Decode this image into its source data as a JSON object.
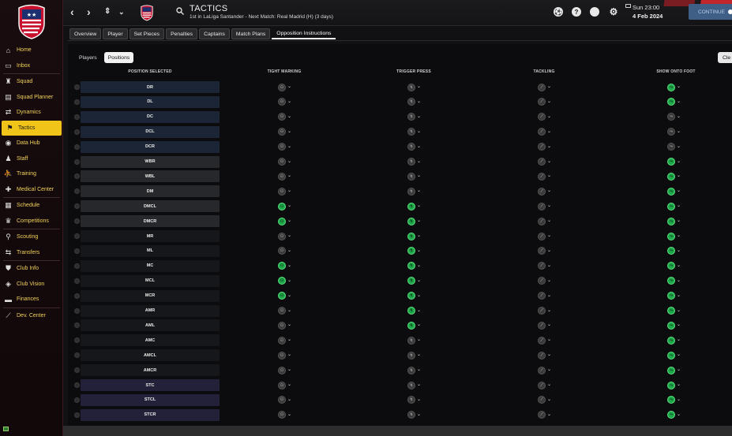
{
  "sidebar": {
    "items": [
      {
        "label": "Home",
        "icon": "home-icon",
        "glyph": "⌂"
      },
      {
        "label": "Inbox",
        "icon": "inbox-icon",
        "glyph": "▭"
      },
      {
        "sep": true
      },
      {
        "label": "Squad",
        "icon": "shirt-icon",
        "glyph": "♜"
      },
      {
        "label": "Squad Planner",
        "icon": "planner-icon",
        "glyph": "▤"
      },
      {
        "label": "Dynamics",
        "icon": "dynamics-icon",
        "glyph": "⇄"
      },
      {
        "label": "Tactics",
        "icon": "tactics-icon",
        "glyph": "⚑",
        "active": true
      },
      {
        "label": "Data Hub",
        "icon": "data-hub-icon",
        "glyph": "◉"
      },
      {
        "label": "Staff",
        "icon": "staff-icon",
        "glyph": "♟"
      },
      {
        "label": "Training",
        "icon": "training-icon",
        "glyph": "⛹"
      },
      {
        "label": "Medical Center",
        "icon": "medical-icon",
        "glyph": "✚"
      },
      {
        "sep": true
      },
      {
        "label": "Schedule",
        "icon": "schedule-icon",
        "glyph": "▦"
      },
      {
        "label": "Competitions",
        "icon": "trophy-icon",
        "glyph": "♛"
      },
      {
        "sep": true
      },
      {
        "label": "Scouting",
        "icon": "scouting-icon",
        "glyph": "⚲"
      },
      {
        "label": "Transfers",
        "icon": "transfers-icon",
        "glyph": "⇆"
      },
      {
        "sep": true
      },
      {
        "label": "Club Info",
        "icon": "shield-icon",
        "glyph": "⛊"
      },
      {
        "label": "Club Vision",
        "icon": "vision-icon",
        "glyph": "◈"
      },
      {
        "label": "Finances",
        "icon": "finances-icon",
        "glyph": "▬"
      },
      {
        "sep": true
      },
      {
        "label": "Dev. Center",
        "icon": "dev-center-icon",
        "glyph": "⟋"
      }
    ]
  },
  "header": {
    "title": "TACTICS",
    "subtitle": "1st in LaLiga Santander - Next Match: Real Madrid (H) (3 days)",
    "time": "Sun 23:00",
    "date": "4 Feb 2024",
    "continue_label": "CONTINUE"
  },
  "tabs": [
    "Overview",
    "Player",
    "Set Pieces",
    "Penalties",
    "Captains",
    "Match Plans",
    "Opposition Instructions"
  ],
  "active_tab": "Opposition Instructions",
  "sub_tabs": [
    "Players",
    "Positions"
  ],
  "active_sub_tab": "Positions",
  "clear_label": "Cle",
  "columns": {
    "position": "POSITION SELECTED",
    "tight_marking": "TIGHT MARKING",
    "trigger_press": "TRIGGER PRESS",
    "tackling": "TACKLING",
    "show_onto_foot": "SHOW ONTO FOOT"
  },
  "colors": {
    "accent_yellow": "#f0c419",
    "active_green": "#1fa84a",
    "row_blue": "#1a2433",
    "row_grey": "#26272a",
    "row_purple": "#22213a",
    "continue_blue": "#3f5f86"
  },
  "rows": [
    {
      "pos": "DR",
      "tone": "blue",
      "tm": false,
      "tp": false,
      "tk": false,
      "sf": true
    },
    {
      "pos": "DL",
      "tone": "blue",
      "tm": false,
      "tp": false,
      "tk": false,
      "sf": true
    },
    {
      "pos": "DC",
      "tone": "blue",
      "tm": false,
      "tp": false,
      "tk": false,
      "sf": false
    },
    {
      "pos": "DCL",
      "tone": "blue",
      "tm": false,
      "tp": false,
      "tk": false,
      "sf": false
    },
    {
      "pos": "DCR",
      "tone": "blue",
      "tm": false,
      "tp": false,
      "tk": false,
      "sf": false
    },
    {
      "pos": "WBR",
      "tone": "grey",
      "tm": false,
      "tp": false,
      "tk": false,
      "sf": true
    },
    {
      "pos": "WBL",
      "tone": "grey",
      "tm": false,
      "tp": false,
      "tk": false,
      "sf": true
    },
    {
      "pos": "DM",
      "tone": "grey",
      "tm": false,
      "tp": false,
      "tk": false,
      "sf": true
    },
    {
      "pos": "DMCL",
      "tone": "grey",
      "tm": true,
      "tp": true,
      "tk": false,
      "sf": true
    },
    {
      "pos": "DMCR",
      "tone": "grey",
      "tm": true,
      "tp": true,
      "tk": false,
      "sf": true
    },
    {
      "pos": "MR",
      "tone": "dark",
      "tm": false,
      "tp": true,
      "tk": false,
      "sf": true
    },
    {
      "pos": "ML",
      "tone": "dark",
      "tm": false,
      "tp": true,
      "tk": false,
      "sf": true
    },
    {
      "pos": "MC",
      "tone": "dark",
      "tm": true,
      "tp": true,
      "tk": false,
      "sf": true
    },
    {
      "pos": "MCL",
      "tone": "dark",
      "tm": true,
      "tp": true,
      "tk": false,
      "sf": true
    },
    {
      "pos": "MCR",
      "tone": "dark",
      "tm": true,
      "tp": true,
      "tk": false,
      "sf": true
    },
    {
      "pos": "AMR",
      "tone": "dark",
      "tm": false,
      "tp": true,
      "tk": false,
      "sf": true
    },
    {
      "pos": "AML",
      "tone": "dark",
      "tm": false,
      "tp": true,
      "tk": false,
      "sf": true
    },
    {
      "pos": "AMC",
      "tone": "dark",
      "tm": false,
      "tp": false,
      "tk": false,
      "sf": true
    },
    {
      "pos": "AMCL",
      "tone": "dark",
      "tm": false,
      "tp": false,
      "tk": false,
      "sf": true
    },
    {
      "pos": "AMCR",
      "tone": "dark",
      "tm": false,
      "tp": false,
      "tk": false,
      "sf": true
    },
    {
      "pos": "STC",
      "tone": "purple",
      "tm": false,
      "tp": false,
      "tk": false,
      "sf": true
    },
    {
      "pos": "STCL",
      "tone": "purple",
      "tm": false,
      "tp": false,
      "tk": false,
      "sf": true
    },
    {
      "pos": "STCR",
      "tone": "purple",
      "tm": false,
      "tp": false,
      "tk": false,
      "sf": true
    }
  ]
}
